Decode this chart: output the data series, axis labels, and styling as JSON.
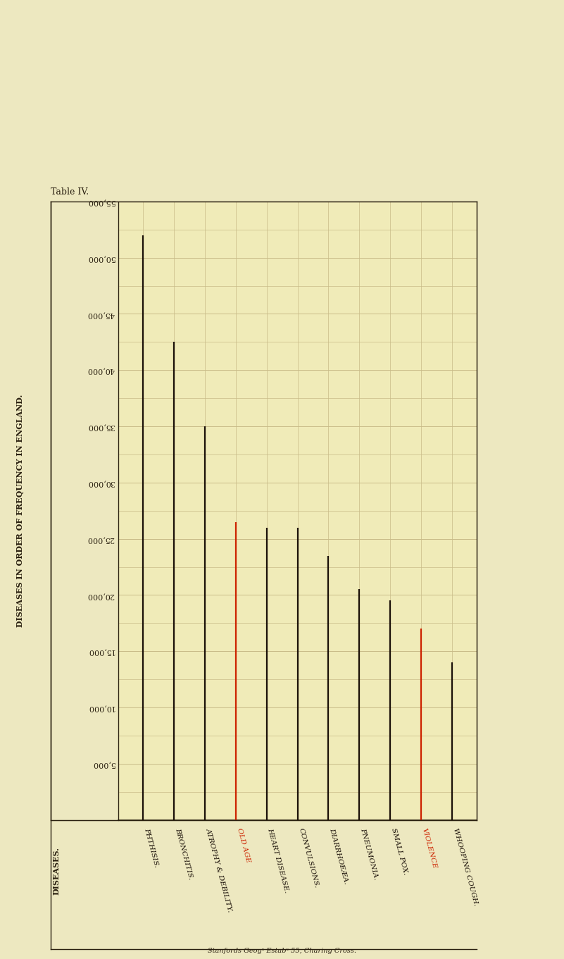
{
  "title": "Table IV.",
  "ylabel": "DISEASES IN ORDER OF FREQUENCY IN ENGLAND.",
  "xlabel_label": "DISEASES.",
  "background_color": "#ede8c0",
  "chart_bg": "#f0ebb8",
  "grid_color": "#c8bb88",
  "axis_color": "#2a2010",
  "line_color": "#1a1008",
  "red_color": "#cc2200",
  "categories": [
    "PHTHISIS.",
    "BRONCHITIS.",
    "ATROPHY & DEBILITY.",
    "OLD AGE",
    "HEART DISEASE.",
    "CONVULSIONS.",
    "DIARRHOEÆA.",
    "PNEUMONIA.",
    "SMALL POX.",
    "VIOLENCE",
    "WHOOPING COUGH."
  ],
  "values": [
    52000,
    42500,
    35000,
    26500,
    26000,
    26000,
    23500,
    20500,
    19500,
    17000,
    14000
  ],
  "colors": [
    "dark",
    "dark",
    "dark",
    "red",
    "dark",
    "dark",
    "dark",
    "dark",
    "dark",
    "red",
    "dark"
  ],
  "ymin": 0,
  "ymax": 55000,
  "ytick_interval": 5000,
  "minor_ytick_interval": 2500,
  "bottom_label": "Stanfords Geogˣ Estabˣ 55, Charing Cross.",
  "line_width": 1.6
}
